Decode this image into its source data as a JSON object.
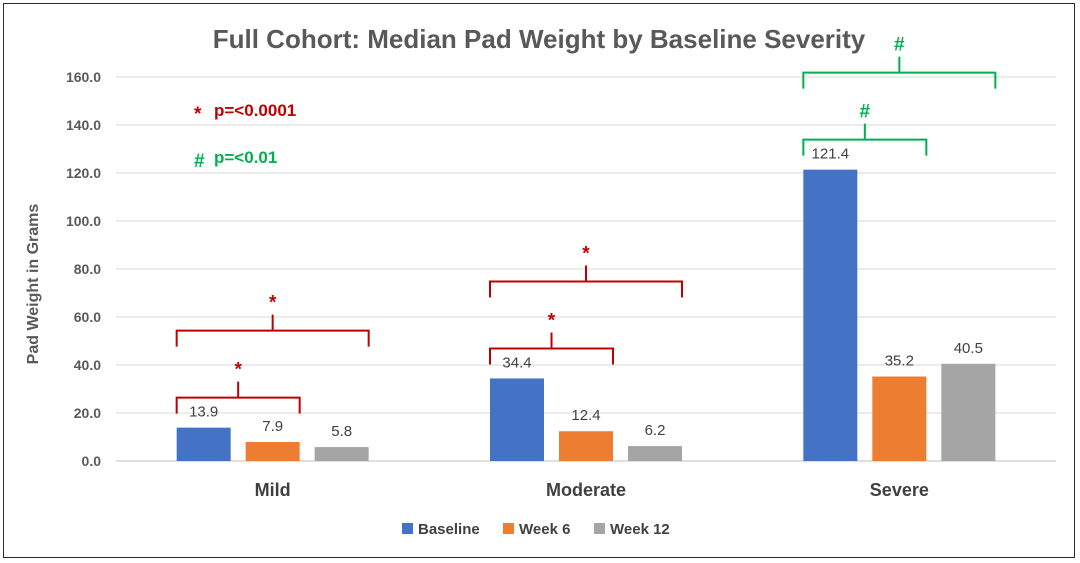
{
  "chart_data": {
    "type": "bar",
    "title": "Full Cohort: Median Pad Weight by Baseline Severity",
    "ylabel": "Pad Weight in Grams",
    "xlabel": "",
    "ylim": [
      0,
      160
    ],
    "yticks": [
      "0.0",
      "20.0",
      "40.0",
      "60.0",
      "80.0",
      "100.0",
      "120.0",
      "140.0",
      "160.0"
    ],
    "categories": [
      "Mild",
      "Moderate",
      "Severe"
    ],
    "series": [
      {
        "name": "Baseline",
        "color": "#4472C4",
        "values": [
          13.9,
          34.4,
          121.4
        ],
        "labels": [
          "13.9",
          "34.4",
          "121.4"
        ]
      },
      {
        "name": "Week 6",
        "color": "#ED7D31",
        "values": [
          7.9,
          12.4,
          35.2
        ],
        "labels": [
          "7.9",
          "12.4",
          "35.2"
        ]
      },
      {
        "name": "Week 12",
        "color": "#A5A5A5",
        "values": [
          5.8,
          6.2,
          40.5
        ],
        "labels": [
          "5.8",
          "6.2",
          "40.5"
        ]
      }
    ],
    "grid": true,
    "legend_position": "bottom",
    "significance_notes": [
      {
        "symbol": "*",
        "text": "p=<0.0001",
        "color": "#C00000"
      },
      {
        "symbol": "#",
        "text": "p=<0.01",
        "color": "#00B050"
      }
    ],
    "brackets": [
      {
        "category": 0,
        "from": 0,
        "to": 1,
        "symbol": "*",
        "color": "#C00000"
      },
      {
        "category": 0,
        "from": 0,
        "to": 2,
        "symbol": "*",
        "color": "#C00000"
      },
      {
        "category": 1,
        "from": 0,
        "to": 1,
        "symbol": "*",
        "color": "#C00000"
      },
      {
        "category": 1,
        "from": 0,
        "to": 2,
        "symbol": "*",
        "color": "#C00000"
      },
      {
        "category": 2,
        "from": 0,
        "to": 1,
        "symbol": "#",
        "color": "#00B050"
      },
      {
        "category": 2,
        "from": 0,
        "to": 2,
        "symbol": "#",
        "color": "#00B050"
      }
    ]
  }
}
